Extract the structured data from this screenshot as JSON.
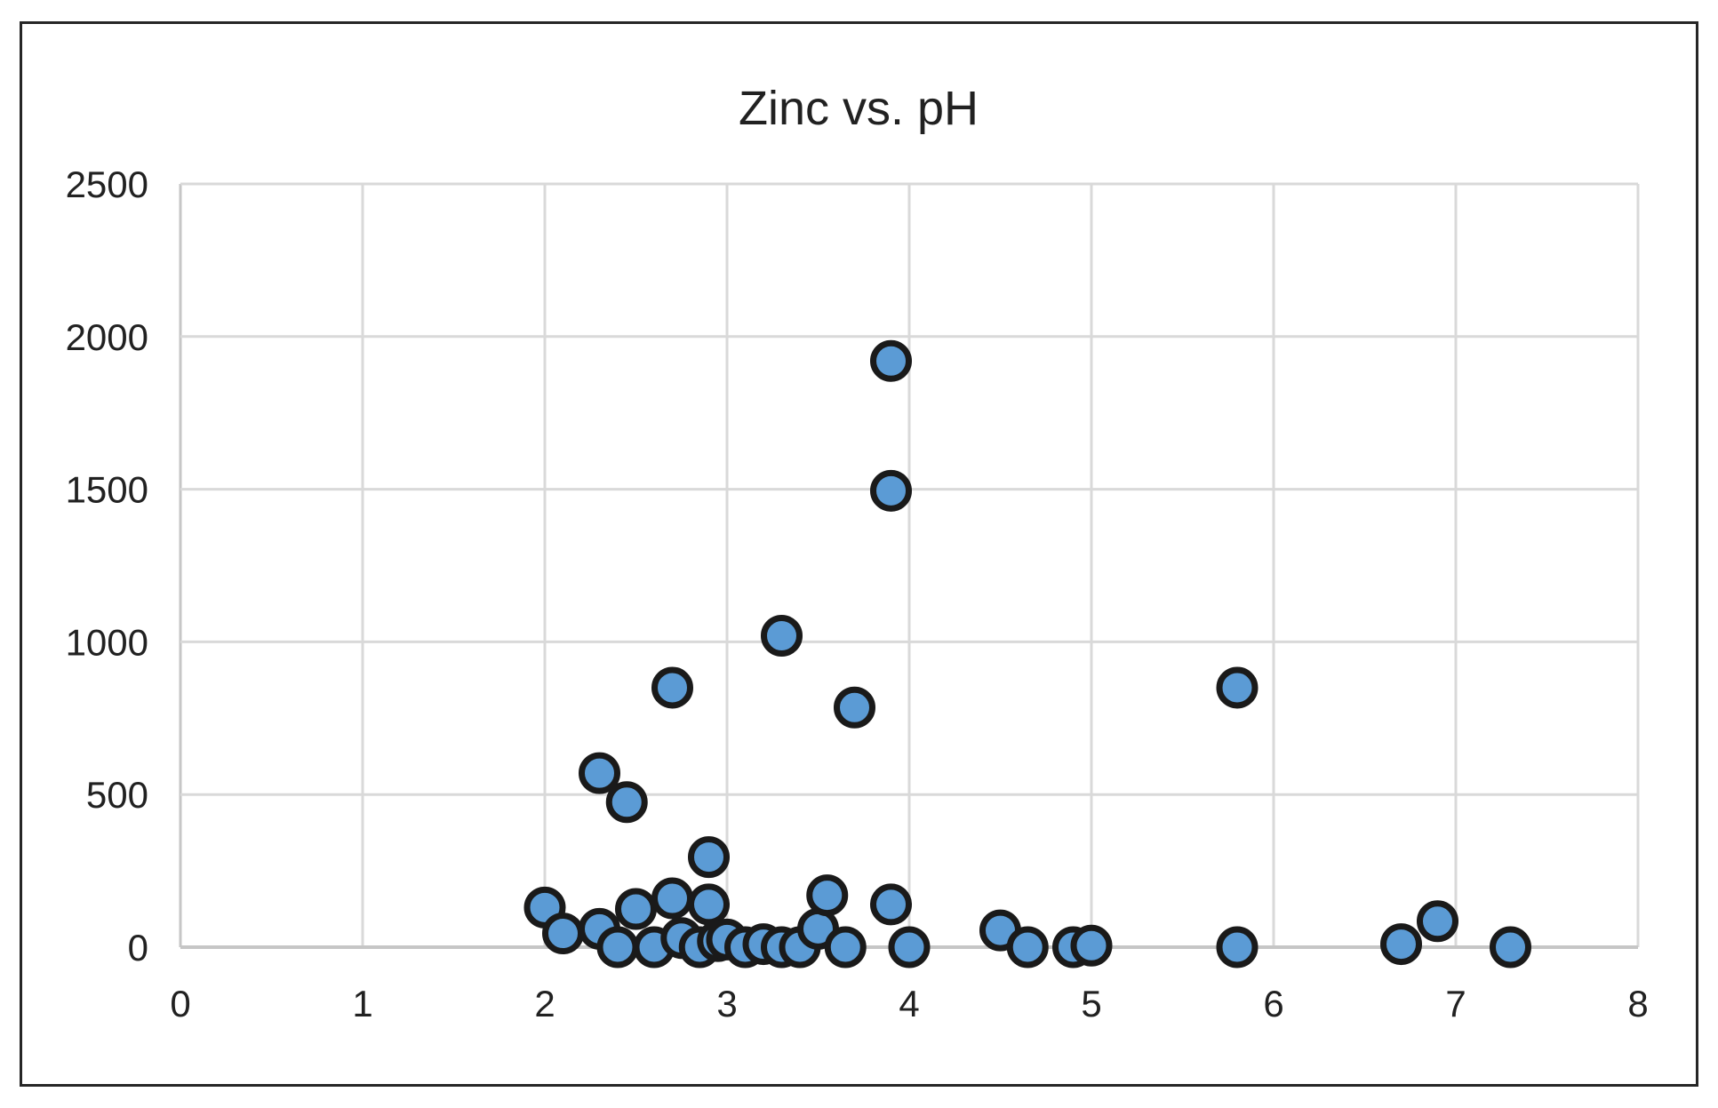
{
  "window": {
    "background": "#ffffff",
    "frame_border_color": "#262626"
  },
  "chart_data": {
    "type": "scatter",
    "title": "Zinc vs. pH",
    "xlabel": "",
    "ylabel": "",
    "xlim": [
      0,
      8
    ],
    "ylim": [
      0,
      2500
    ],
    "xticks": [
      0,
      1,
      2,
      3,
      4,
      5,
      6,
      7,
      8
    ],
    "yticks": [
      0,
      500,
      1000,
      1500,
      2000,
      2500
    ],
    "grid": true,
    "legend": false,
    "gridline_color": "#d9d9d9",
    "axis_color": "#c6c6c6",
    "text_color": "#212121",
    "marker": {
      "shape": "circle",
      "fill": "#5b9bd5",
      "stroke": "#1a1a1a",
      "stroke_width": 7,
      "radius": 20
    },
    "points": [
      [
        2.0,
        130
      ],
      [
        2.1,
        45
      ],
      [
        2.3,
        570
      ],
      [
        2.3,
        60
      ],
      [
        2.4,
        0
      ],
      [
        2.45,
        475
      ],
      [
        2.5,
        125
      ],
      [
        2.6,
        0
      ],
      [
        2.7,
        850
      ],
      [
        2.7,
        160
      ],
      [
        2.75,
        30
      ],
      [
        2.85,
        0
      ],
      [
        2.9,
        295
      ],
      [
        2.9,
        140
      ],
      [
        2.95,
        20
      ],
      [
        3.0,
        25
      ],
      [
        3.1,
        0
      ],
      [
        3.2,
        10
      ],
      [
        3.3,
        1020
      ],
      [
        3.3,
        0
      ],
      [
        3.4,
        0
      ],
      [
        3.5,
        60
      ],
      [
        3.55,
        170
      ],
      [
        3.65,
        0
      ],
      [
        3.7,
        785
      ],
      [
        3.9,
        1920
      ],
      [
        3.9,
        1495
      ],
      [
        3.9,
        140
      ],
      [
        4.0,
        0
      ],
      [
        4.5,
        55
      ],
      [
        4.65,
        0
      ],
      [
        4.9,
        0
      ],
      [
        5.0,
        5
      ],
      [
        5.8,
        850
      ],
      [
        5.8,
        0
      ],
      [
        6.7,
        10
      ],
      [
        6.9,
        85
      ],
      [
        7.3,
        0
      ]
    ]
  }
}
